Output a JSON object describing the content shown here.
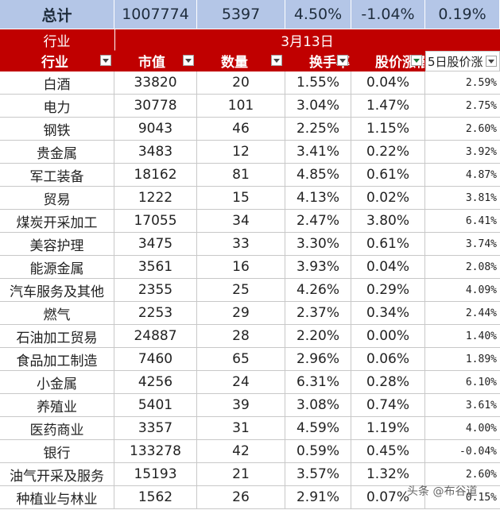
{
  "totals": {
    "label": "总计",
    "market_cap": "1007774",
    "count": "5397",
    "turnover": "4.50%",
    "change": "-1.04%",
    "change5": "0.19%"
  },
  "header": {
    "group_label": "行业",
    "date": "3月13日",
    "columns": [
      "行业",
      "市值",
      "数量",
      "换手率",
      "股价涨幅",
      "5日股价涨"
    ]
  },
  "rows": [
    {
      "industry": "白酒",
      "market_cap": "33820",
      "count": "20",
      "turnover": "1.55%",
      "change": "0.04%",
      "change5": "2.59%"
    },
    {
      "industry": "电力",
      "market_cap": "30778",
      "count": "101",
      "turnover": "3.04%",
      "change": "1.47%",
      "change5": "2.75%"
    },
    {
      "industry": "钢铁",
      "market_cap": "9043",
      "count": "46",
      "turnover": "2.25%",
      "change": "1.15%",
      "change5": "2.60%"
    },
    {
      "industry": "贵金属",
      "market_cap": "3483",
      "count": "12",
      "turnover": "3.41%",
      "change": "0.22%",
      "change5": "3.92%"
    },
    {
      "industry": "军工装备",
      "market_cap": "18162",
      "count": "81",
      "turnover": "4.85%",
      "change": "0.61%",
      "change5": "4.87%"
    },
    {
      "industry": "贸易",
      "market_cap": "1222",
      "count": "15",
      "turnover": "4.13%",
      "change": "0.02%",
      "change5": "3.81%"
    },
    {
      "industry": "煤炭开采加工",
      "market_cap": "17055",
      "count": "34",
      "turnover": "2.47%",
      "change": "3.80%",
      "change5": "6.41%"
    },
    {
      "industry": "美容护理",
      "market_cap": "3475",
      "count": "33",
      "turnover": "3.30%",
      "change": "0.61%",
      "change5": "3.74%"
    },
    {
      "industry": "能源金属",
      "market_cap": "3561",
      "count": "16",
      "turnover": "3.93%",
      "change": "0.04%",
      "change5": "2.08%"
    },
    {
      "industry": "汽车服务及其他",
      "market_cap": "2355",
      "count": "25",
      "turnover": "4.26%",
      "change": "0.29%",
      "change5": "4.09%"
    },
    {
      "industry": "燃气",
      "market_cap": "2253",
      "count": "29",
      "turnover": "2.37%",
      "change": "0.34%",
      "change5": "2.44%"
    },
    {
      "industry": "石油加工贸易",
      "market_cap": "24887",
      "count": "28",
      "turnover": "2.20%",
      "change": "0.00%",
      "change5": "1.40%"
    },
    {
      "industry": "食品加工制造",
      "market_cap": "7460",
      "count": "65",
      "turnover": "2.96%",
      "change": "0.06%",
      "change5": "1.89%"
    },
    {
      "industry": "小金属",
      "market_cap": "4256",
      "count": "24",
      "turnover": "6.31%",
      "change": "0.28%",
      "change5": "6.10%"
    },
    {
      "industry": "养殖业",
      "market_cap": "5401",
      "count": "39",
      "turnover": "3.08%",
      "change": "0.74%",
      "change5": "3.61%"
    },
    {
      "industry": "医药商业",
      "market_cap": "3357",
      "count": "31",
      "turnover": "4.59%",
      "change": "1.19%",
      "change5": "4.00%"
    },
    {
      "industry": "银行",
      "market_cap": "133278",
      "count": "42",
      "turnover": "0.59%",
      "change": "0.45%",
      "change5": "-0.04%"
    },
    {
      "industry": "油气开采及服务",
      "market_cap": "15193",
      "count": "21",
      "turnover": "3.57%",
      "change": "1.32%",
      "change5": "2.60%"
    },
    {
      "industry": "种植业与林业",
      "market_cap": "1562",
      "count": "26",
      "turnover": "2.91%",
      "change": "0.07%",
      "change5": "0.15%"
    }
  ],
  "watermark": "头条 @布谷道"
}
